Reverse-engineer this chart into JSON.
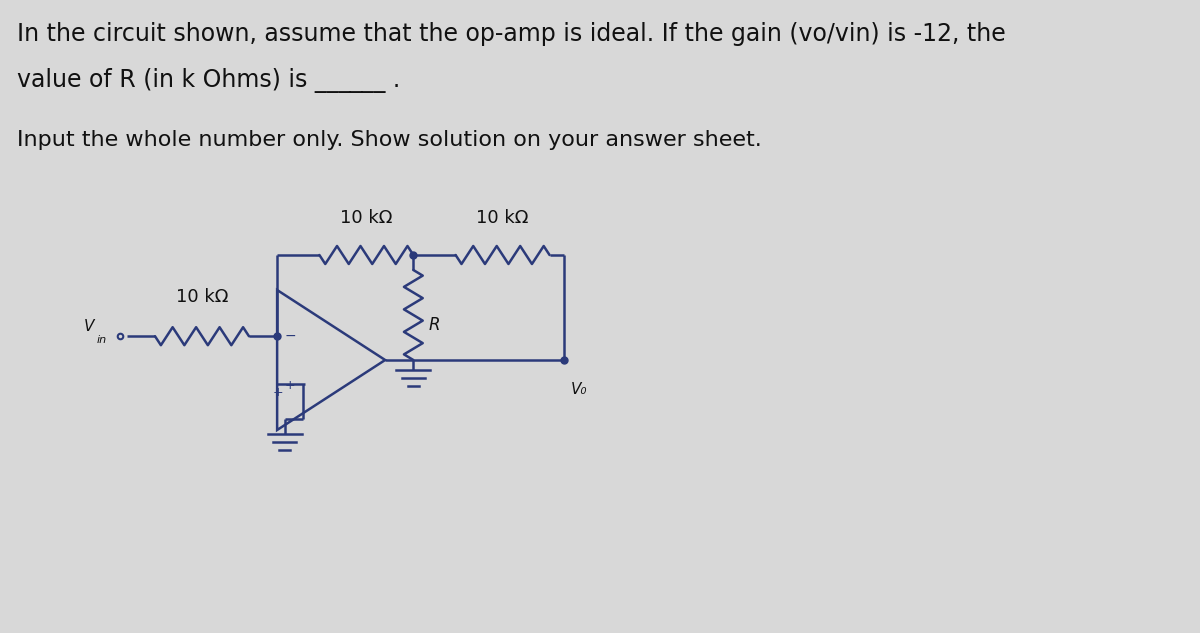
{
  "bg_color": "#d8d8d8",
  "text_color": "#111111",
  "line_color": "#2b3a7a",
  "line_width": 1.8,
  "title_line1": "In the circuit shown, assume that the op-amp is ideal. If the gain (vo/vin) is -12, the",
  "title_line2": "value of R (in k Ohms) is ______ .",
  "subtitle": "Input the whole number only. Show solution on your answer sheet.",
  "label_10k_top1": "10 kΩ",
  "label_10k_top2": "10 kΩ",
  "label_10k_left": "10 kΩ",
  "label_R": "R",
  "font_title": 17,
  "font_subtitle": 16,
  "font_label": 13,
  "font_circuit": 12
}
